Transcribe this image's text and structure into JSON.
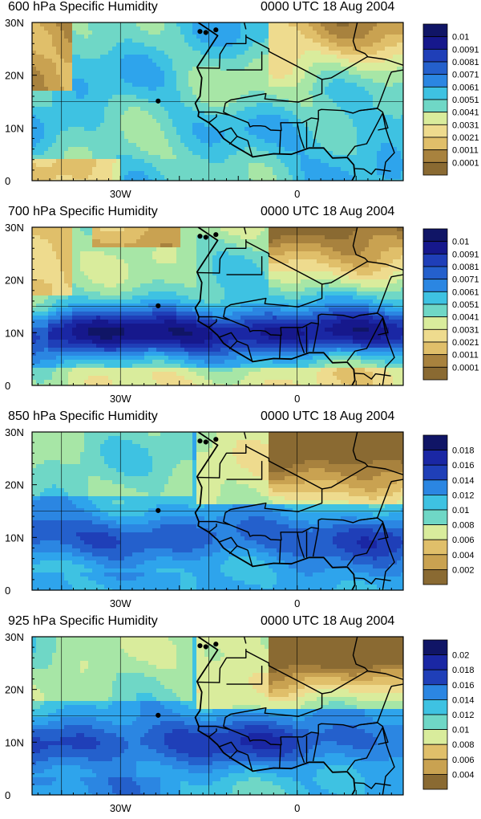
{
  "figure": {
    "panels": [
      {
        "id": "600hPa",
        "title_left": "600 hPa Specific Humidity",
        "title_right": "0000 UTC 18 Aug 2004",
        "legend": [
          "0.01",
          "0.0091",
          "0.0081",
          "0.0071",
          "0.0061",
          "0.0051",
          "0.0041",
          "0.0031",
          "0.0021",
          "0.0011",
          "0.0001"
        ],
        "moist_band_strength": 0.35
      },
      {
        "id": "700hPa",
        "title_left": "700 hPa Specific Humidity",
        "title_right": "0000 UTC 18 Aug 2004",
        "legend": [
          "0.01",
          "0.0091",
          "0.0081",
          "0.0071",
          "0.0061",
          "0.0051",
          "0.0041",
          "0.0031",
          "0.0021",
          "0.0011",
          "0.0001"
        ],
        "moist_band_strength": 0.95
      },
      {
        "id": "850hPa",
        "title_left": "850 hPa Specific Humidity",
        "title_right": "0000 UTC 18 Aug 2004",
        "legend": [
          "0.018",
          "0.016",
          "0.014",
          "0.012",
          "0.01",
          "0.008",
          "0.006",
          "0.004",
          "0.002"
        ],
        "moist_band_strength": 0.7
      },
      {
        "id": "925hPa",
        "title_left": "925 hPa Specific Humidity",
        "title_right": "0000 UTC 18 Aug 2004",
        "legend": [
          "0.02",
          "0.018",
          "0.016",
          "0.014",
          "0.012",
          "0.01",
          "0.008",
          "0.006",
          "0.004"
        ],
        "moist_band_strength": 0.7
      }
    ],
    "axis": {
      "lat_labels": [
        "30N",
        "20N",
        "10N",
        "0"
      ],
      "lon_labels": [
        "30W",
        "0"
      ]
    },
    "colors": {
      "scale": [
        "#8a6a32",
        "#a8823e",
        "#c9a251",
        "#e0bf6a",
        "#eedb8e",
        "#d9ec9c",
        "#a7e6a6",
        "#6fd7c6",
        "#3ec2e2",
        "#2ea4ec",
        "#2b86e2",
        "#2460cc",
        "#1f3fb8",
        "#1a27a4",
        "#16188c",
        "#101566"
      ]
    }
  }
}
